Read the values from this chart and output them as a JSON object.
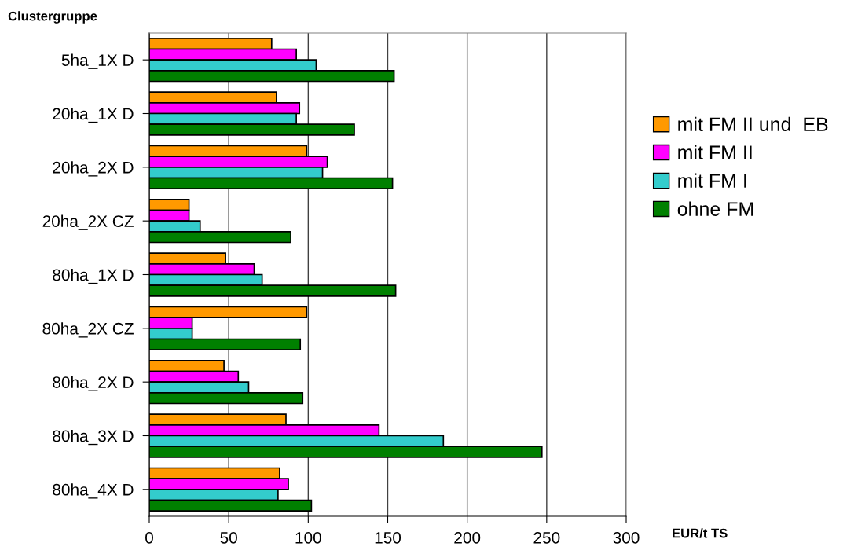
{
  "chart_data": {
    "type": "bar",
    "orientation": "horizontal",
    "xlabel": "EUR/t TS",
    "ylabel": "Clustergruppe",
    "categories": [
      "5ha_1X D",
      "20ha_1X D",
      "20ha_2X D",
      "20ha_2X CZ",
      "80ha_1X D",
      "80ha_2X CZ",
      "80ha_2X D",
      "80ha_3X D",
      "80ha_4X D"
    ],
    "series": [
      {
        "name": "mit FM II und  EB",
        "color": "#ff9900",
        "values": [
          77,
          80,
          99,
          25,
          48,
          99,
          47,
          86,
          82
        ]
      },
      {
        "name": "mit FM II",
        "color": "#ff00ff",
        "values": [
          92.5,
          94.5,
          112,
          25,
          66,
          27,
          56,
          144.5,
          87.5
        ]
      },
      {
        "name": "mit FM I",
        "color": "#33cccc",
        "values": [
          105,
          92.5,
          109,
          32,
          71,
          27,
          62.5,
          185,
          81
        ]
      },
      {
        "name": "ohne FM",
        "color": "#008000",
        "values": [
          154,
          129,
          153,
          89,
          155,
          95,
          96.5,
          247,
          102
        ]
      }
    ],
    "xlim": [
      0,
      300
    ],
    "xticks": [
      0,
      50,
      100,
      150,
      200,
      250,
      300
    ],
    "grid": "x",
    "legend": "right"
  }
}
